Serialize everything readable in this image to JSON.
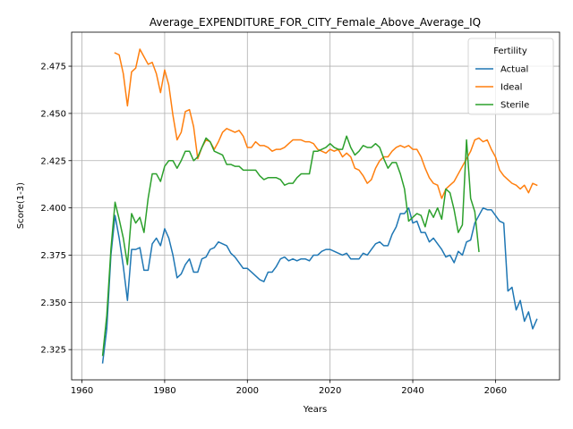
{
  "chart_data": {
    "type": "line",
    "title": "Average_EXPENDITURE_FOR_CITY_Female_Above_Average_IQ",
    "xlabel": "Years",
    "ylabel": "Score(1-3)",
    "xlim": [
      1957.5,
      2075.5
    ],
    "ylim": [
      2.309,
      2.493
    ],
    "xticks": [
      1960,
      1980,
      2000,
      2020,
      2040,
      2060
    ],
    "yticks": [
      2.325,
      2.35,
      2.375,
      2.4,
      2.425,
      2.45,
      2.475
    ],
    "ytick_labels": [
      "2.325",
      "2.350",
      "2.375",
      "2.400",
      "2.425",
      "2.450",
      "2.475"
    ],
    "grid": true,
    "legend": {
      "title": "Fertility",
      "placement": "top-right"
    },
    "series": [
      {
        "name": "Actual",
        "color": "#1f77b4",
        "x": [
          1965,
          1966,
          1967,
          1968,
          1969,
          1970,
          1971,
          1972,
          1973,
          1974,
          1975,
          1976,
          1977,
          1978,
          1979,
          1980,
          1981,
          1982,
          1983,
          1984,
          1985,
          1986,
          1987,
          1988,
          1989,
          1990,
          1991,
          1992,
          1993,
          1994,
          1995,
          1996,
          1997,
          1998,
          1999,
          2000,
          2001,
          2002,
          2003,
          2004,
          2005,
          2006,
          2007,
          2008,
          2009,
          2010,
          2011,
          2012,
          2013,
          2014,
          2015,
          2016,
          2017,
          2018,
          2019,
          2020,
          2021,
          2022,
          2023,
          2024,
          2025,
          2026,
          2027,
          2028,
          2029,
          2030,
          2031,
          2032,
          2033,
          2034,
          2035,
          2036,
          2037,
          2038,
          2039,
          2040,
          2041,
          2042,
          2043,
          2044,
          2045,
          2046,
          2047,
          2048,
          2049,
          2050,
          2051,
          2052,
          2053,
          2054,
          2055,
          2056,
          2057,
          2058,
          2059,
          2060,
          2061,
          2062,
          2063,
          2064,
          2065,
          2066,
          2067,
          2068,
          2069,
          2070
        ],
        "y": [
          2.318,
          2.336,
          2.375,
          2.396,
          2.384,
          2.369,
          2.351,
          2.378,
          2.378,
          2.379,
          2.367,
          2.367,
          2.381,
          2.384,
          2.38,
          2.389,
          2.384,
          2.375,
          2.363,
          2.365,
          2.37,
          2.373,
          2.366,
          2.366,
          2.373,
          2.374,
          2.378,
          2.379,
          2.382,
          2.381,
          2.38,
          2.376,
          2.374,
          2.371,
          2.368,
          2.368,
          2.366,
          2.364,
          2.362,
          2.361,
          2.366,
          2.366,
          2.369,
          2.373,
          2.374,
          2.372,
          2.373,
          2.372,
          2.373,
          2.373,
          2.372,
          2.375,
          2.375,
          2.377,
          2.378,
          2.378,
          2.377,
          2.376,
          2.375,
          2.376,
          2.373,
          2.373,
          2.373,
          2.376,
          2.375,
          2.378,
          2.381,
          2.382,
          2.38,
          2.38,
          2.386,
          2.39,
          2.397,
          2.397,
          2.4,
          2.392,
          2.393,
          2.387,
          2.387,
          2.382,
          2.384,
          2.381,
          2.378,
          2.374,
          2.375,
          2.371,
          2.377,
          2.375,
          2.382,
          2.383,
          2.392,
          2.396,
          2.4,
          2.399,
          2.399,
          2.396,
          2.393,
          2.392,
          2.356,
          2.358,
          2.346,
          2.351,
          2.34,
          2.345,
          2.336,
          2.341
        ]
      },
      {
        "name": "Ideal",
        "color": "#ff7f0e",
        "x": [
          1968,
          1969,
          1970,
          1971,
          1972,
          1973,
          1974,
          1975,
          1976,
          1977,
          1978,
          1979,
          1980,
          1981,
          1982,
          1983,
          1984,
          1985,
          1986,
          1987,
          1988,
          1989,
          1990,
          1991,
          1992,
          1993,
          1994,
          1995,
          1996,
          1997,
          1998,
          1999,
          2000,
          2001,
          2002,
          2003,
          2004,
          2005,
          2006,
          2007,
          2008,
          2009,
          2010,
          2011,
          2012,
          2013,
          2014,
          2015,
          2016,
          2017,
          2018,
          2019,
          2020,
          2021,
          2022,
          2023,
          2024,
          2025,
          2026,
          2027,
          2028,
          2029,
          2030,
          2031,
          2032,
          2033,
          2034,
          2035,
          2036,
          2037,
          2038,
          2039,
          2040,
          2041,
          2042,
          2043,
          2044,
          2045,
          2046,
          2047,
          2048,
          2049,
          2050,
          2051,
          2052,
          2053,
          2054,
          2055,
          2056,
          2057,
          2058,
          2059,
          2060,
          2061,
          2062,
          2063,
          2064,
          2065,
          2066,
          2067,
          2068,
          2069,
          2070
        ],
        "y": [
          2.482,
          2.481,
          2.471,
          2.454,
          2.472,
          2.474,
          2.484,
          2.48,
          2.476,
          2.477,
          2.471,
          2.461,
          2.473,
          2.465,
          2.449,
          2.436,
          2.44,
          2.451,
          2.452,
          2.443,
          2.426,
          2.432,
          2.436,
          2.435,
          2.431,
          2.435,
          2.44,
          2.442,
          2.441,
          2.44,
          2.441,
          2.438,
          2.432,
          2.432,
          2.435,
          2.433,
          2.433,
          2.432,
          2.43,
          2.431,
          2.431,
          2.432,
          2.434,
          2.436,
          2.436,
          2.436,
          2.435,
          2.435,
          2.434,
          2.431,
          2.43,
          2.429,
          2.431,
          2.43,
          2.431,
          2.427,
          2.429,
          2.427,
          2.421,
          2.42,
          2.417,
          2.413,
          2.415,
          2.421,
          2.425,
          2.427,
          2.427,
          2.43,
          2.432,
          2.433,
          2.432,
          2.433,
          2.431,
          2.431,
          2.427,
          2.421,
          2.416,
          2.413,
          2.412,
          2.405,
          2.41,
          2.412,
          2.414,
          2.418,
          2.422,
          2.426,
          2.43,
          2.436,
          2.437,
          2.435,
          2.436,
          2.431,
          2.427,
          2.42,
          2.417,
          2.415,
          2.413,
          2.412,
          2.41,
          2.412,
          2.408,
          2.413,
          2.412
        ]
      },
      {
        "name": "Sterile",
        "color": "#2ca02c",
        "x": [
          1965,
          1966,
          1967,
          1968,
          1969,
          1970,
          1971,
          1972,
          1973,
          1974,
          1975,
          1976,
          1977,
          1978,
          1979,
          1980,
          1981,
          1982,
          1983,
          1984,
          1985,
          1986,
          1987,
          1988,
          1989,
          1990,
          1991,
          1992,
          1993,
          1994,
          1995,
          1996,
          1997,
          1998,
          1999,
          2000,
          2001,
          2002,
          2003,
          2004,
          2005,
          2006,
          2007,
          2008,
          2009,
          2010,
          2011,
          2012,
          2013,
          2014,
          2015,
          2016,
          2017,
          2018,
          2019,
          2020,
          2021,
          2022,
          2023,
          2024,
          2025,
          2026,
          2027,
          2028,
          2029,
          2030,
          2031,
          2032,
          2033,
          2034,
          2035,
          2036,
          2037,
          2038,
          2039,
          2040,
          2041,
          2042,
          2043,
          2044,
          2045,
          2046,
          2047,
          2048,
          2049,
          2050,
          2051,
          2052,
          2053,
          2054,
          2055,
          2056
        ],
        "y": [
          2.322,
          2.343,
          2.378,
          2.403,
          2.394,
          2.384,
          2.37,
          2.397,
          2.392,
          2.395,
          2.387,
          2.405,
          2.418,
          2.418,
          2.414,
          2.422,
          2.425,
          2.425,
          2.421,
          2.425,
          2.43,
          2.43,
          2.425,
          2.427,
          2.432,
          2.437,
          2.435,
          2.43,
          2.429,
          2.428,
          2.423,
          2.423,
          2.422,
          2.422,
          2.42,
          2.42,
          2.42,
          2.42,
          2.417,
          2.415,
          2.416,
          2.416,
          2.416,
          2.415,
          2.412,
          2.413,
          2.413,
          2.416,
          2.418,
          2.418,
          2.418,
          2.43,
          2.43,
          2.431,
          2.432,
          2.434,
          2.432,
          2.431,
          2.431,
          2.438,
          2.432,
          2.428,
          2.43,
          2.433,
          2.432,
          2.432,
          2.434,
          2.432,
          2.426,
          2.421,
          2.424,
          2.424,
          2.418,
          2.41,
          2.393,
          2.395,
          2.397,
          2.396,
          2.39,
          2.399,
          2.395,
          2.4,
          2.394,
          2.41,
          2.408,
          2.399,
          2.387,
          2.391,
          2.436,
          2.405,
          2.398,
          2.377
        ]
      }
    ]
  }
}
